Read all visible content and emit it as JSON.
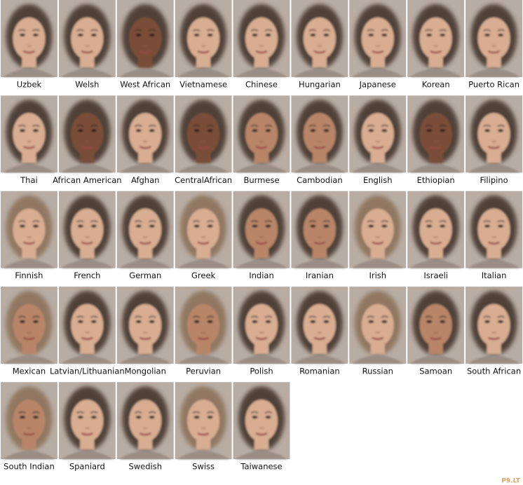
{
  "labels": [
    "Uzbek",
    "Welsh",
    "West African",
    "Vietnamese",
    "Chinese",
    "Hungarian",
    "Japanese",
    "Korean",
    "Puerto Rican",
    "Thai",
    "African American",
    "Afghan",
    "CentralAfrican",
    "Burmese",
    "Cambodian",
    "English",
    "Ethiopian",
    "Filipino",
    "Finnish",
    "French",
    "German",
    "Greek",
    "Indian",
    "Iranian",
    "Irish",
    "Israeli",
    "Italian",
    "Mexican",
    "Latvian/Lithuanian",
    "Mongolian",
    "Peruvian",
    "Polish",
    "Romanian",
    "Russian",
    "Samoan",
    "South African",
    "South Indian",
    "Spaniard",
    "Swedish",
    "Swiss",
    "Taiwanese"
  ],
  "watermark": "P9.LT"
}
